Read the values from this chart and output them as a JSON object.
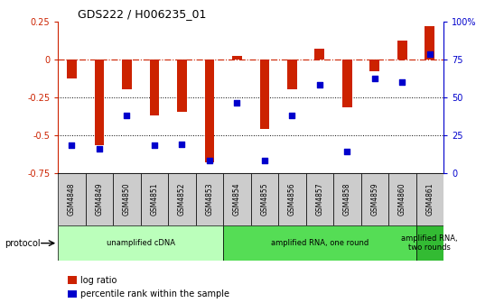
{
  "title": "GDS222 / H006235_01",
  "samples": [
    "GSM4848",
    "GSM4849",
    "GSM4850",
    "GSM4851",
    "GSM4852",
    "GSM4853",
    "GSM4854",
    "GSM4855",
    "GSM4856",
    "GSM4857",
    "GSM4858",
    "GSM4859",
    "GSM4860",
    "GSM4861"
  ],
  "log_ratio": [
    -0.13,
    -0.57,
    -0.2,
    -0.37,
    -0.35,
    -0.68,
    0.02,
    -0.46,
    -0.2,
    0.07,
    -0.32,
    -0.08,
    0.12,
    0.22
  ],
  "percentile": [
    18,
    16,
    38,
    18,
    19,
    8,
    46,
    8,
    38,
    58,
    14,
    62,
    60,
    78
  ],
  "bar_color": "#cc2200",
  "dot_color": "#0000cc",
  "ylim_left": [
    -0.75,
    0.25
  ],
  "ylim_right": [
    0,
    100
  ],
  "yticks_left": [
    -0.75,
    -0.5,
    -0.25,
    0.0,
    0.25
  ],
  "yticks_right": [
    0,
    25,
    50,
    75,
    100
  ],
  "hline_y": 0.0,
  "dotted_lines": [
    -0.25,
    -0.5
  ],
  "protocols": [
    {
      "label": "unamplified cDNA",
      "start": 0,
      "end": 5,
      "color": "#bbffbb"
    },
    {
      "label": "amplified RNA, one round",
      "start": 6,
      "end": 12,
      "color": "#55dd55"
    },
    {
      "label": "amplified RNA,\ntwo rounds",
      "start": 13,
      "end": 13,
      "color": "#33bb33"
    }
  ],
  "legend_items": [
    {
      "label": "log ratio",
      "color": "#cc2200"
    },
    {
      "label": "percentile rank within the sample",
      "color": "#0000cc"
    }
  ],
  "protocol_label": "protocol",
  "background_color": "#ffffff",
  "bar_width": 0.35,
  "dot_size": 20
}
